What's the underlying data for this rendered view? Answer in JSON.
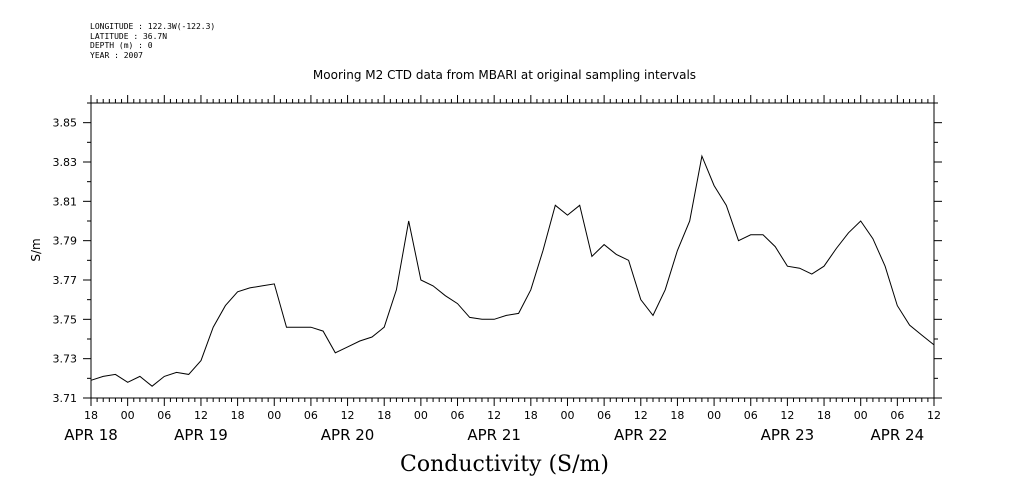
{
  "meta": {
    "longitude": "LONGITUDE : 122.3W(-122.3)",
    "latitude": "LATITUDE : 36.7N",
    "depth": "DEPTH (m) : 0",
    "year": "YEAR : 2007"
  },
  "chart_data": {
    "type": "line",
    "title": "Mooring M2 CTD data from MBARI at original sampling intervals",
    "xlabel": "Conductivity (S/m)",
    "ylabel": "S/m",
    "ylim": [
      3.71,
      3.86
    ],
    "y_ticks": [
      "3.71",
      "3.73",
      "3.75",
      "3.77",
      "3.79",
      "3.81",
      "3.83",
      "3.85"
    ],
    "xlim": [
      "2007-04-18 18:00",
      "2007-04-24 12:00"
    ],
    "x_hour_labels": [
      "18",
      "00",
      "06",
      "12",
      "18",
      "00",
      "06",
      "12",
      "18",
      "00",
      "06",
      "12",
      "18",
      "00",
      "06",
      "12",
      "18",
      "00",
      "06",
      "12",
      "18",
      "00",
      "06",
      "12"
    ],
    "x_day_labels": [
      {
        "label": "APR 18",
        "date": "2007-04-18 18:00"
      },
      {
        "label": "APR 19",
        "date": "2007-04-19 12:00"
      },
      {
        "label": "APR 20",
        "date": "2007-04-20 12:00"
      },
      {
        "label": "APR 21",
        "date": "2007-04-21 12:00"
      },
      {
        "label": "APR 22",
        "date": "2007-04-22 12:00"
      },
      {
        "label": "APR 23",
        "date": "2007-04-23 12:00"
      },
      {
        "label": "APR 24",
        "date": "2007-04-24 06:00"
      }
    ],
    "grid": false,
    "series": [
      {
        "x": [
          "2007-04-18 18:00",
          "2007-04-18 20:00",
          "2007-04-18 22:00",
          "2007-04-19 00:00",
          "2007-04-19 02:00",
          "2007-04-19 04:00",
          "2007-04-19 06:00",
          "2007-04-19 08:00",
          "2007-04-19 10:00",
          "2007-04-19 12:00",
          "2007-04-19 14:00",
          "2007-04-19 16:00",
          "2007-04-19 18:00",
          "2007-04-19 20:00",
          "2007-04-19 22:00",
          "2007-04-20 00:00",
          "2007-04-20 02:00",
          "2007-04-20 04:00",
          "2007-04-20 06:00",
          "2007-04-20 08:00",
          "2007-04-20 10:00",
          "2007-04-20 12:00",
          "2007-04-20 14:00",
          "2007-04-20 16:00",
          "2007-04-20 18:00",
          "2007-04-20 20:00",
          "2007-04-20 22:00",
          "2007-04-21 00:00",
          "2007-04-21 02:00",
          "2007-04-21 04:00",
          "2007-04-21 06:00",
          "2007-04-21 08:00",
          "2007-04-21 10:00",
          "2007-04-21 12:00",
          "2007-04-21 14:00",
          "2007-04-21 16:00",
          "2007-04-21 18:00",
          "2007-04-21 20:00",
          "2007-04-21 22:00",
          "2007-04-22 00:00",
          "2007-04-22 02:00",
          "2007-04-22 04:00",
          "2007-04-22 06:00",
          "2007-04-22 08:00",
          "2007-04-22 10:00",
          "2007-04-22 12:00",
          "2007-04-22 14:00",
          "2007-04-22 16:00",
          "2007-04-22 18:00",
          "2007-04-22 20:00",
          "2007-04-22 22:00",
          "2007-04-23 00:00",
          "2007-04-23 02:00",
          "2007-04-23 04:00",
          "2007-04-23 06:00",
          "2007-04-23 08:00",
          "2007-04-23 10:00",
          "2007-04-23 12:00",
          "2007-04-23 14:00",
          "2007-04-23 16:00",
          "2007-04-23 18:00",
          "2007-04-23 20:00",
          "2007-04-23 22:00",
          "2007-04-24 00:00",
          "2007-04-24 02:00",
          "2007-04-24 04:00",
          "2007-04-24 06:00",
          "2007-04-24 08:00",
          "2007-04-24 10:00",
          "2007-04-24 12:00"
        ],
        "y": [
          3.719,
          3.721,
          3.722,
          3.718,
          3.721,
          3.716,
          3.721,
          3.723,
          3.722,
          3.729,
          3.746,
          3.757,
          3.764,
          3.766,
          3.767,
          3.768,
          3.746,
          3.746,
          3.746,
          3.744,
          3.733,
          3.736,
          3.739,
          3.741,
          3.746,
          3.765,
          3.8,
          3.77,
          3.767,
          3.762,
          3.758,
          3.751,
          3.75,
          3.75,
          3.752,
          3.753,
          3.765,
          3.785,
          3.808,
          3.803,
          3.808,
          3.782,
          3.788,
          3.783,
          3.78,
          3.76,
          3.752,
          3.765,
          3.785,
          3.8,
          3.833,
          3.818,
          3.808,
          3.79,
          3.793,
          3.793,
          3.787,
          3.777,
          3.776,
          3.773,
          3.777,
          3.786,
          3.794,
          3.8,
          3.791,
          3.777,
          3.757,
          3.747,
          3.742,
          3.737
        ]
      }
    ]
  }
}
